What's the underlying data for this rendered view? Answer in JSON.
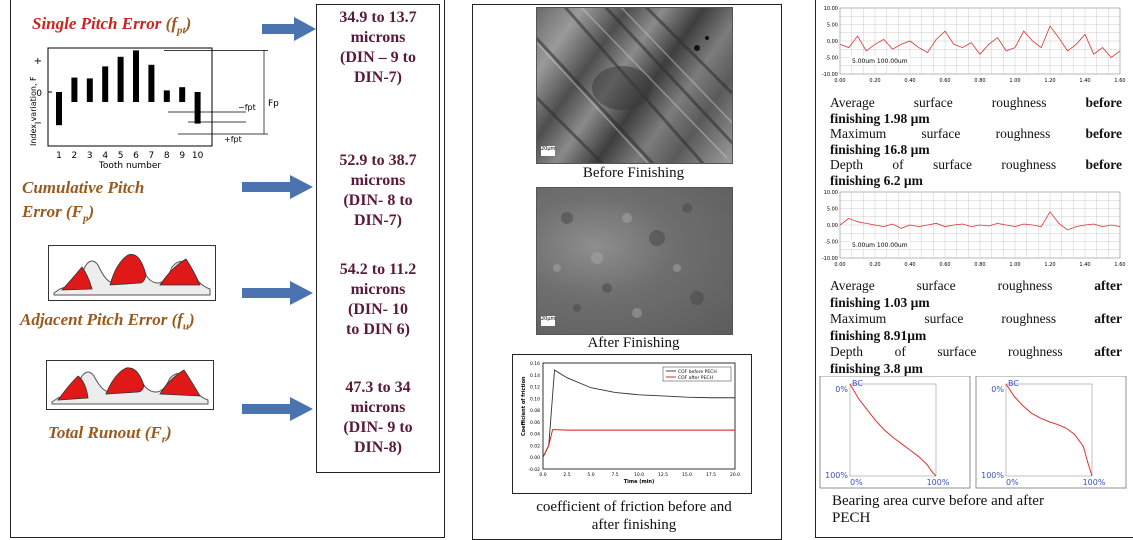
{
  "left": {
    "single_title": "Single Pitch Error",
    "single_symbol": "(f",
    "single_sub": "pt",
    "single_close": ")",
    "cumulative_title_1": "Cumulative Pitch",
    "cumulative_title_2": "Error (F",
    "cumulative_sub": "p",
    "adjacent_title": "Adjacent Pitch Error (f",
    "adjacent_sub": "u",
    "runout_title": "Total Runout (F",
    "runout_sub": "r",
    "close_paren": ")",
    "chart": {
      "ylabel": "Index variation, F",
      "ylabel_sub": "x",
      "xlabel": "Tooth number",
      "plus": "+",
      "zero": "0",
      "minus": "−",
      "fp_label": "F",
      "fp_sub": "p",
      "fpt_label_1": "−f",
      "fpt_label_2": "+f",
      "fpt_sub": "pt"
    }
  },
  "microns": {
    "m1": [
      "34.9 to 13.7",
      "microns",
      "(DIN – 9 to",
      "DIN-7)"
    ],
    "m2": [
      "52.9 to 38.7",
      "microns",
      "(DIN- 8 to",
      "DIN-7)"
    ],
    "m3": [
      "54.2 to 11.2",
      "microns",
      "(DIN- 10",
      "to DIN 6)"
    ],
    "m4": [
      "47.3 to 34",
      "microns",
      "(DIN- 9 to",
      "DIN-8)"
    ]
  },
  "middle": {
    "before_caption": "Before Finishing",
    "after_caption": "After Finishing",
    "scale_bar": "20µm",
    "cof_caption_1": "coefficient of friction before and",
    "cof_caption_2": "after finishing",
    "cof_legend_1": "COF before PECH",
    "cof_legend_2": "COF after PECH",
    "cof_ylabel": "Coefficient of friction",
    "cof_xlabel": "Time (min)"
  },
  "right": {
    "profile_legend": "5.00um   100.00um",
    "before_lines": {
      "l1a": "Average surface roughness",
      "l1b": "before",
      "l1c": "finishing 1.98 µm",
      "l2a": "Maximum surface roughness",
      "l2b": "before",
      "l2c": "finishing 16.8 µm",
      "l3a": "Depth of surface roughness",
      "l3b": "before",
      "l3c": "finishing 6.2 µm"
    },
    "after_lines": {
      "l1a": "Average surface roughness",
      "l1b": "after",
      "l1c": "finishing 1.03 µm",
      "l2a": "Maximum surface roughness",
      "l2b": "after",
      "l2c": "finishing 8.91µm",
      "l3a": "Depth of surface roughness",
      "l3b": "after",
      "l3c": "finishing 3.8 µm"
    },
    "bearing_bc": "BC",
    "bearing_0": "0%",
    "bearing_100": "100%",
    "bearing_caption_1": "Bearing area curve before and after",
    "bearing_caption_2": "PECH"
  },
  "chart_data": [
    {
      "type": "bar",
      "xlabel": "Tooth number",
      "ylabel": "Index variation, Fx",
      "categories": [
        "1",
        "2",
        "3",
        "4",
        "5",
        "6",
        "7",
        "8",
        "9",
        "10"
      ],
      "values": [
        -0.2,
        0.9,
        0.85,
        1.6,
        2.2,
        2.6,
        1.7,
        0.1,
        0.3,
        -0.1
      ]
    },
    {
      "type": "line",
      "xlabel": "Time (min)",
      "ylabel": "Coefficient of friction",
      "x_ticks": [
        "0.0",
        "2.5",
        "5.0",
        "7.5",
        "10.0",
        "12.5",
        "15.0",
        "17.5",
        "20.0"
      ],
      "y_ticks": [
        "-0.02",
        "0.00",
        "0.02",
        "0.04",
        "0.06",
        "0.08",
        "0.10",
        "0.12",
        "0.14",
        "0.16"
      ],
      "series": [
        {
          "name": "COF before PECH",
          "x": [
            0,
            0.6,
            1.2,
            2.5,
            5,
            7.5,
            10,
            12.5,
            15,
            17.5,
            20
          ],
          "y": [
            0,
            0.02,
            0.148,
            0.135,
            0.118,
            0.11,
            0.106,
            0.104,
            0.102,
            0.101,
            0.101
          ]
        },
        {
          "name": "COF after PECH",
          "x": [
            0,
            0.6,
            1.0,
            2.5,
            5,
            7.5,
            10,
            12.5,
            15,
            17.5,
            20
          ],
          "y": [
            0,
            0.02,
            0.047,
            0.046,
            0.046,
            0.046,
            0.046,
            0.046,
            0.046,
            0.046,
            0.046
          ]
        }
      ]
    },
    {
      "type": "line",
      "x_ticks": [
        "0.00",
        "0.20",
        "0.40",
        "0.60",
        "0.80",
        "1.00",
        "1.20",
        "1.40",
        "1.60"
      ],
      "y_ticks": [
        "10.00",
        "5.00",
        "0.00",
        "-5.00",
        "-10.00"
      ],
      "series": [
        {
          "x": [
            0,
            0.05,
            0.1,
            0.15,
            0.2,
            0.25,
            0.3,
            0.35,
            0.4,
            0.45,
            0.5,
            0.55,
            0.6,
            0.65,
            0.7,
            0.75,
            0.8,
            0.85,
            0.9,
            0.95,
            1.0,
            1.05,
            1.1,
            1.15,
            1.2,
            1.25,
            1.3,
            1.35,
            1.4,
            1.45,
            1.5,
            1.55,
            1.6
          ],
          "y": [
            -1,
            -2,
            1.5,
            -3,
            -1,
            0.5,
            -2.5,
            -1,
            0,
            -2,
            -3.5,
            0.5,
            3,
            -1,
            -2,
            -0.5,
            -4,
            -1,
            1,
            -3,
            -2,
            3,
            0,
            -2,
            4.5,
            1,
            -3,
            -1,
            2,
            -4,
            -2,
            -5,
            -3
          ]
        }
      ]
    },
    {
      "type": "line",
      "x_ticks": [
        "0.00",
        "0.20",
        "0.40",
        "0.60",
        "0.80",
        "1.00",
        "1.20",
        "1.40",
        "1.60"
      ],
      "y_ticks": [
        "10.00",
        "5.00",
        "0.00",
        "-5.00",
        "-10.00"
      ],
      "series": [
        {
          "x": [
            0,
            0.05,
            0.1,
            0.15,
            0.2,
            0.25,
            0.3,
            0.35,
            0.4,
            0.45,
            0.5,
            0.55,
            0.6,
            0.65,
            0.7,
            0.75,
            0.8,
            0.85,
            0.9,
            0.95,
            1.0,
            1.05,
            1.1,
            1.15,
            1.2,
            1.25,
            1.3,
            1.35,
            1.4,
            1.45,
            1.5,
            1.55,
            1.6
          ],
          "y": [
            0,
            2,
            1,
            0.5,
            0,
            -0.5,
            0.3,
            -1,
            0,
            -0.5,
            0,
            0.5,
            -0.5,
            0,
            0.3,
            -0.5,
            0,
            -0.3,
            0.5,
            0,
            -0.5,
            0.3,
            0,
            -0.5,
            4,
            0.5,
            -1.5,
            -0.5,
            0,
            0.3,
            -0.5,
            0,
            -0.5
          ]
        }
      ]
    },
    {
      "type": "line",
      "series": [
        {
          "x": [
            0,
            5,
            10,
            20,
            30,
            40,
            50,
            60,
            70,
            80,
            90,
            95,
            100
          ],
          "y": [
            0,
            8,
            16,
            28,
            40,
            50,
            58,
            65,
            72,
            79,
            88,
            95,
            100
          ]
        }
      ]
    },
    {
      "type": "line",
      "series": [
        {
          "x": [
            0,
            5,
            10,
            20,
            30,
            40,
            50,
            60,
            70,
            80,
            90,
            95,
            100
          ],
          "y": [
            0,
            7,
            14,
            24,
            32,
            37,
            41,
            44,
            48,
            55,
            68,
            85,
            100
          ]
        }
      ]
    }
  ]
}
